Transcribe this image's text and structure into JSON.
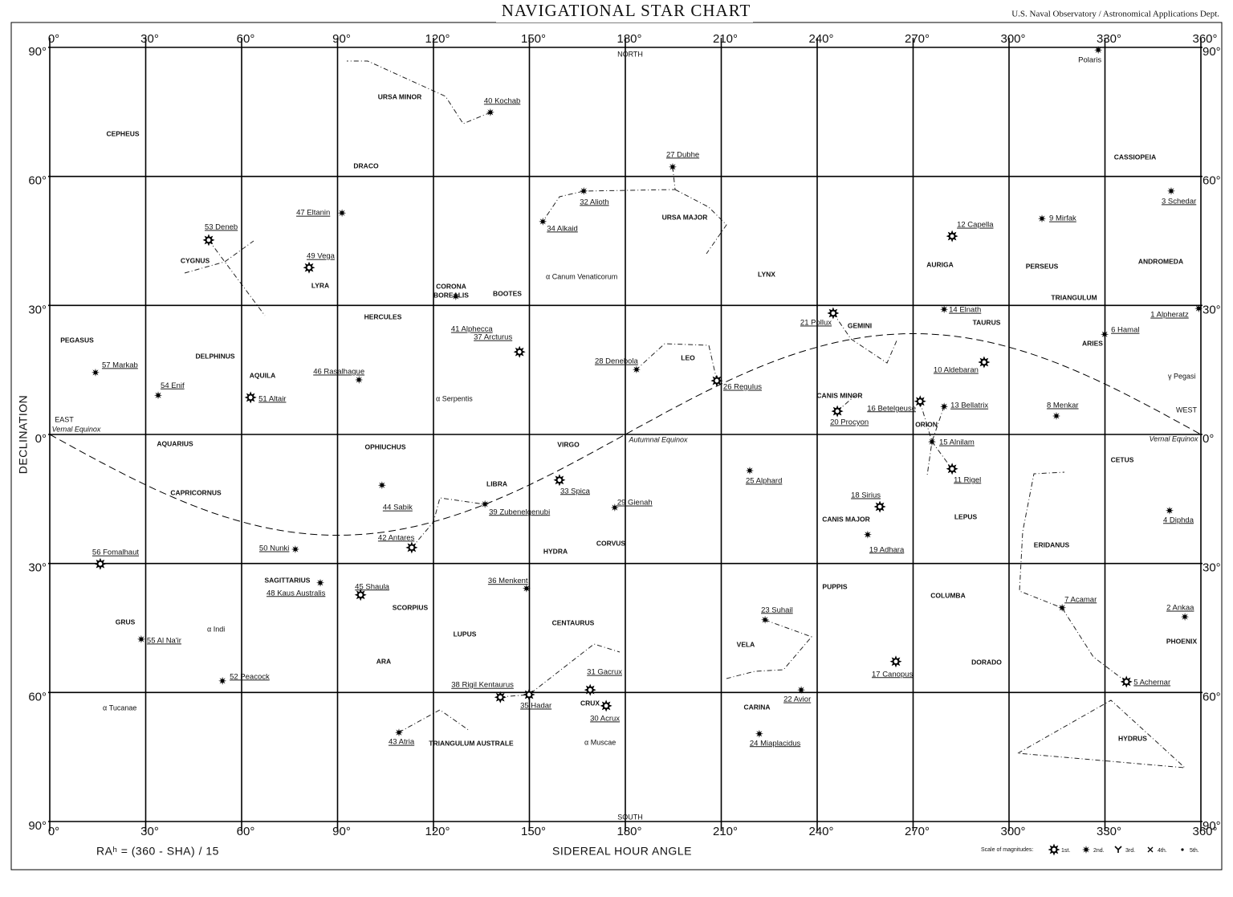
{
  "chart_data": {
    "type": "scatter",
    "title": "NAVIGATIONAL STAR CHART",
    "subtitle": "U.S. Naval Observatory / Astronomical Applications Dept.",
    "xlabel": "SIDEREAL HOUR ANGLE",
    "ylabel": "DECLINATION",
    "note": "RAʰ = (360 - SHA) / 15",
    "xlim": [
      0,
      360
    ],
    "ylim": [
      -90,
      90
    ],
    "xticks": [
      {
        "value": 0,
        "label": "0°"
      },
      {
        "value": 30,
        "label": "30°"
      },
      {
        "value": 60,
        "label": "60°"
      },
      {
        "value": 90,
        "label": "90°"
      },
      {
        "value": 120,
        "label": "120°"
      },
      {
        "value": 150,
        "label": "150°"
      },
      {
        "value": 180,
        "label": "180°"
      },
      {
        "value": 210,
        "label": "210°"
      },
      {
        "value": 240,
        "label": "240°"
      },
      {
        "value": 270,
        "label": "270°"
      },
      {
        "value": 300,
        "label": "300°"
      },
      {
        "value": 330,
        "label": "330°"
      },
      {
        "value": 360,
        "label": "360°"
      }
    ],
    "yticks": [
      {
        "value": 90,
        "label": "90°"
      },
      {
        "value": 60,
        "label": "60°"
      },
      {
        "value": 30,
        "label": "30°"
      },
      {
        "value": 0,
        "label": "0°"
      },
      {
        "value": -30,
        "label": "30°"
      },
      {
        "value": -60,
        "label": "60°"
      },
      {
        "value": -90,
        "label": "90°"
      }
    ],
    "grid": true,
    "color": "#000000",
    "legend": {
      "title": "Scale of magnitudes:",
      "labels": [
        "1st.",
        "2nd.",
        "3rd.",
        "4th.",
        "5th."
      ]
    },
    "stars": [
      {
        "label": "1 Alpheratz",
        "x": 359.3,
        "y": 29.3,
        "mag": 2
      },
      {
        "label": "2 Ankaa",
        "x": 355,
        "y": -42.4,
        "mag": 2
      },
      {
        "label": "3 Schedar",
        "x": 350.7,
        "y": 56.6,
        "mag": 2
      },
      {
        "label": "4 Diphda",
        "x": 350.2,
        "y": -17.7,
        "mag": 2
      },
      {
        "label": "5 Achernar",
        "x": 336.7,
        "y": -57.5,
        "mag": 1
      },
      {
        "label": "6 Hamal",
        "x": 329.9,
        "y": 23.3,
        "mag": 2
      },
      {
        "label": "7 Acamar",
        "x": 316.6,
        "y": -40.3,
        "mag": 2
      },
      {
        "label": "8 Menkar",
        "x": 314.8,
        "y": 4.3,
        "mag": 2
      },
      {
        "label": "9 Mirfak",
        "x": 310.3,
        "y": 50.2,
        "mag": 2
      },
      {
        "label": "10 Aldebaran",
        "x": 292.2,
        "y": 16.8,
        "mag": 1
      },
      {
        "label": "11 Rigel",
        "x": 282.2,
        "y": -8,
        "mag": 1
      },
      {
        "label": "12 Capella",
        "x": 282.2,
        "y": 46.1,
        "mag": 1
      },
      {
        "label": "13 Bellatrix",
        "x": 279.7,
        "y": 6.5,
        "mag": 2
      },
      {
        "label": "14 Elnath",
        "x": 279.7,
        "y": 29.1,
        "mag": 2
      },
      {
        "label": "15 Alnilam",
        "x": 275.9,
        "y": -1.7,
        "mag": 2
      },
      {
        "label": "16 Betelgeuse",
        "x": 272.2,
        "y": 7.7,
        "mag": 1
      },
      {
        "label": "17 Canopus",
        "x": 264.6,
        "y": -52.8,
        "mag": 1
      },
      {
        "label": "18 Sirius",
        "x": 259.6,
        "y": -16.8,
        "mag": 1
      },
      {
        "label": "19 Adhara",
        "x": 255.8,
        "y": -23.3,
        "mag": 2
      },
      {
        "label": "20 Procyon",
        "x": 246.3,
        "y": 5.4,
        "mag": 1
      },
      {
        "label": "21 Pollux",
        "x": 245,
        "y": 28.2,
        "mag": 1
      },
      {
        "label": "22 Avior",
        "x": 235,
        "y": -59.4,
        "mag": 2
      },
      {
        "label": "23 Suhail",
        "x": 223.7,
        "y": -43.1,
        "mag": 2
      },
      {
        "label": "24 Miaplacidus",
        "x": 221.9,
        "y": -69.6,
        "mag": 2
      },
      {
        "label": "25 Alphard",
        "x": 218.9,
        "y": -8.4,
        "mag": 2
      },
      {
        "label": "26 Regulus",
        "x": 208.6,
        "y": 12.5,
        "mag": 1
      },
      {
        "label": "27 Dubhe",
        "x": 194.8,
        "y": 62.2,
        "mag": 2
      },
      {
        "label": "28 Denebola",
        "x": 183.5,
        "y": 15.1,
        "mag": 2
      },
      {
        "label": "29 Gienah",
        "x": 176.7,
        "y": -17,
        "mag": 2
      },
      {
        "label": "30 Acrux",
        "x": 174,
        "y": -63.1,
        "mag": 1
      },
      {
        "label": "31 Gacrux",
        "x": 169,
        "y": -59.4,
        "mag": 1
      },
      {
        "label": "32 Alioth",
        "x": 167,
        "y": 56.6,
        "mag": 2
      },
      {
        "label": "33 Spica",
        "x": 159.4,
        "y": -10.6,
        "mag": 1
      },
      {
        "label": "34 Alkaid",
        "x": 154.2,
        "y": 49.5,
        "mag": 2
      },
      {
        "label": "35 Hadar",
        "x": 149.9,
        "y": -60.5,
        "mag": 1
      },
      {
        "label": "36 Menkent",
        "x": 149.1,
        "y": -35.8,
        "mag": 2
      },
      {
        "label": "37 Arcturus",
        "x": 146.9,
        "y": 19.2,
        "mag": 1
      },
      {
        "label": "38 Rigil Kentaurus",
        "x": 140.9,
        "y": -61.1,
        "mag": 1
      },
      {
        "label": "39 Zubenelgenubi",
        "x": 136.1,
        "y": -16.2,
        "mag": 2
      },
      {
        "label": "40 Kochab",
        "x": 137.8,
        "y": 74.9,
        "mag": 2
      },
      {
        "label": "41 Alphecca",
        "x": 127,
        "y": 32.1,
        "mag": 2
      },
      {
        "label": "42 Antares",
        "x": 113.2,
        "y": -26.3,
        "mag": 1
      },
      {
        "label": "43 Atria",
        "x": 109.2,
        "y": -69.3,
        "mag": 2
      },
      {
        "label": "44 Sabik",
        "x": 103.9,
        "y": -11.8,
        "mag": 2
      },
      {
        "label": "45 Shaula",
        "x": 97.2,
        "y": -37.3,
        "mag": 1
      },
      {
        "label": "46 Rasalhague",
        "x": 96.7,
        "y": 12.7,
        "mag": 2
      },
      {
        "label": "47 Eltanin",
        "x": 91.4,
        "y": 51.5,
        "mag": 2
      },
      {
        "label": "48 Kaus Australis",
        "x": 84.6,
        "y": -34.5,
        "mag": 2
      },
      {
        "label": "49 Vega",
        "x": 81.1,
        "y": 38.8,
        "mag": 1
      },
      {
        "label": "50 Nunki",
        "x": 76.8,
        "y": -26.7,
        "mag": 2
      },
      {
        "label": "51 Altair",
        "x": 62.8,
        "y": 8.6,
        "mag": 1
      },
      {
        "label": "52 Peacock",
        "x": 54,
        "y": -57.3,
        "mag": 2
      },
      {
        "label": "53 Deneb",
        "x": 49.7,
        "y": 45.2,
        "mag": 1
      },
      {
        "label": "54 Enif",
        "x": 33.9,
        "y": 9.1,
        "mag": 2
      },
      {
        "label": "55 Al Na'ir",
        "x": 28.6,
        "y": -47.6,
        "mag": 2
      },
      {
        "label": "56 Fomalhaut",
        "x": 15.8,
        "y": -30.1,
        "mag": 1
      },
      {
        "label": "57 Markab",
        "x": 14.3,
        "y": 14.4,
        "mag": 2
      },
      {
        "label": "Polaris",
        "x": 327.9,
        "y": 89.4,
        "mag": 2
      }
    ],
    "constellations": [
      "CEPHEUS",
      "URSA MINOR",
      "DRACO",
      "URSA MAJOR",
      "CASSIOPEIA",
      "CYGNUS",
      "LYRA",
      "CORONA",
      "BOREALIS",
      "BOOTES",
      "HERCULES",
      "LYNX",
      "AURIGA",
      "PERSEUS",
      "ANDROMEDA",
      "TRIANGULUM",
      "TAURUS",
      "PEGASUS",
      "DELPHINUS",
      "LEO",
      "GEMINI",
      "ARIES",
      "AQUILA",
      "CANIS MINOR",
      "ORION",
      "OPHIUCHUS",
      "VIRGO",
      "AQUARIUS",
      "CETUS",
      "LIBRA",
      "CAPRICORNUS",
      "LEPUS",
      "CANIS MAJOR",
      "CORVUS",
      "HYDRA",
      "ERIDANUS",
      "SAGITTARIUS",
      "SCORPIUS",
      "PUPPIS",
      "COLUMBA",
      "CENTAURUS",
      "GRUS",
      "LUPUS",
      "PHOENIX",
      "VELA",
      "ARA",
      "DORADO",
      "CRUX",
      "CARINA",
      "TRIANGULUM AUSTRALE",
      "HYDRUS"
    ],
    "annotations": [
      "NORTH",
      "SOUTH",
      "EAST",
      "WEST",
      "Vernal Equinox",
      "Vernal Equinox",
      "Autumnal Equinox",
      "α Canum Venaticorum",
      "α Serpentis",
      "α Indi",
      "α Tucanae",
      "α Muscae",
      "γ Pegasi"
    ]
  }
}
